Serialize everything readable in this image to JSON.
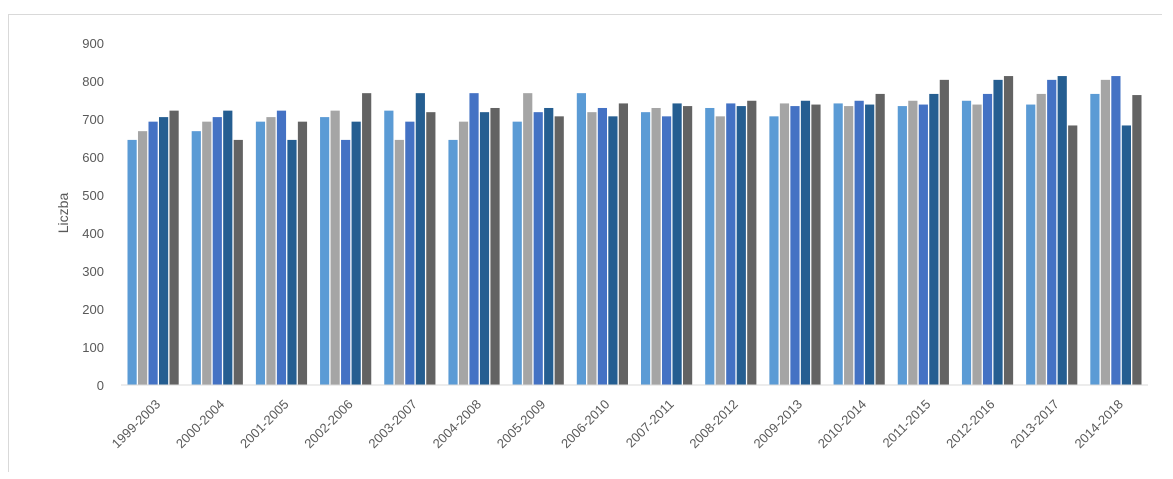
{
  "chart_data": {
    "type": "bar",
    "title": "",
    "xlabel": "",
    "ylabel": "Liczba",
    "ylim": [
      0,
      900
    ],
    "yticks": [
      0,
      100,
      200,
      300,
      400,
      500,
      600,
      700,
      800,
      900
    ],
    "grid": false,
    "legend": "none",
    "categories": [
      "1999-2003",
      "2000-2004",
      "2001-2005",
      "2002-2006",
      "2003-2007",
      "2004-2008",
      "2005-2009",
      "2006-2010",
      "2007-2011",
      "2008-2012",
      "2009-2013",
      "2010-2014",
      "2011-2015",
      "2012-2016",
      "2013-2017",
      "2014-2018"
    ],
    "series": [
      {
        "color": "#5b9bd5",
        "values": [
          645,
          668,
          693,
          705,
          722,
          645,
          693,
          768,
          718,
          729,
          707,
          741,
          734,
          748,
          738,
          766
        ]
      },
      {
        "color": "#a5a5a5",
        "values": [
          668,
          693,
          705,
          722,
          645,
          693,
          768,
          718,
          729,
          707,
          741,
          734,
          748,
          738,
          766,
          803
        ]
      },
      {
        "color": "#4472c4",
        "values": [
          693,
          705,
          722,
          645,
          693,
          768,
          718,
          729,
          707,
          741,
          734,
          748,
          738,
          766,
          803,
          813
        ]
      },
      {
        "color": "#255e91",
        "values": [
          705,
          722,
          645,
          693,
          768,
          718,
          729,
          707,
          741,
          734,
          748,
          738,
          766,
          803,
          813,
          683
        ]
      },
      {
        "color": "#636363",
        "values": [
          722,
          645,
          693,
          768,
          718,
          729,
          707,
          741,
          734,
          748,
          738,
          766,
          803,
          813,
          683,
          763
        ]
      }
    ]
  }
}
